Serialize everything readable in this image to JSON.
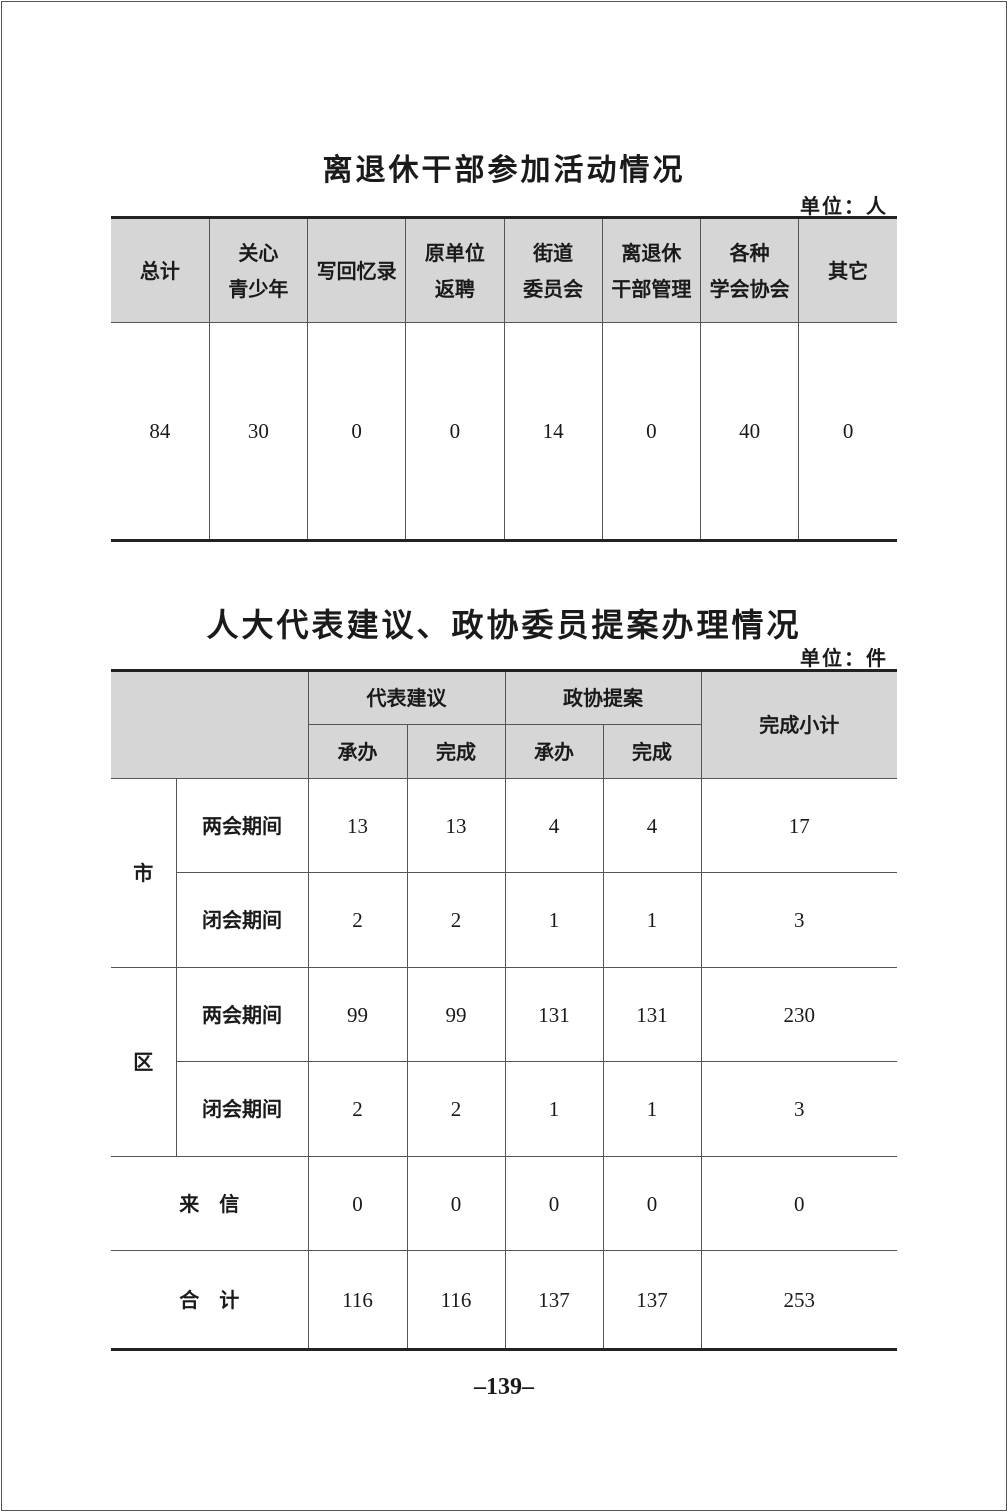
{
  "table1": {
    "title": "离退休干部参加活动情况",
    "unit": "单位：人",
    "headers": [
      [
        "总计"
      ],
      [
        "关心",
        "青少年"
      ],
      [
        "写回忆录"
      ],
      [
        "原单位",
        "返聘"
      ],
      [
        "街道",
        "委员会"
      ],
      [
        "离退休",
        "干部管理"
      ],
      [
        "各种",
        "学会协会"
      ],
      [
        "其它"
      ]
    ],
    "values": [
      "84",
      "30",
      "0",
      "0",
      "14",
      "0",
      "40",
      "0"
    ]
  },
  "table2": {
    "title": "人大代表建议、政协委员提案办理情况",
    "unit": "单位：件",
    "group1": "代表建议",
    "group2": "政协提案",
    "subtotal": "完成小计",
    "sub": [
      "承办",
      "完成",
      "承办",
      "完成"
    ],
    "city": "市",
    "district": "区",
    "period1": "两会期间",
    "period2": "闭会期间",
    "rows": {
      "city_p1": [
        "13",
        "13",
        "4",
        "4",
        "17"
      ],
      "city_p2": [
        "2",
        "2",
        "1",
        "1",
        "3"
      ],
      "dist_p1": [
        "99",
        "99",
        "131",
        "131",
        "230"
      ],
      "dist_p2": [
        "2",
        "2",
        "1",
        "1",
        "3"
      ],
      "letters": [
        "0",
        "0",
        "0",
        "0",
        "0"
      ],
      "total": [
        "116",
        "116",
        "137",
        "137",
        "253"
      ]
    },
    "letters_label": "来　信",
    "total_label": "合　计"
  },
  "page_number": "–139–"
}
